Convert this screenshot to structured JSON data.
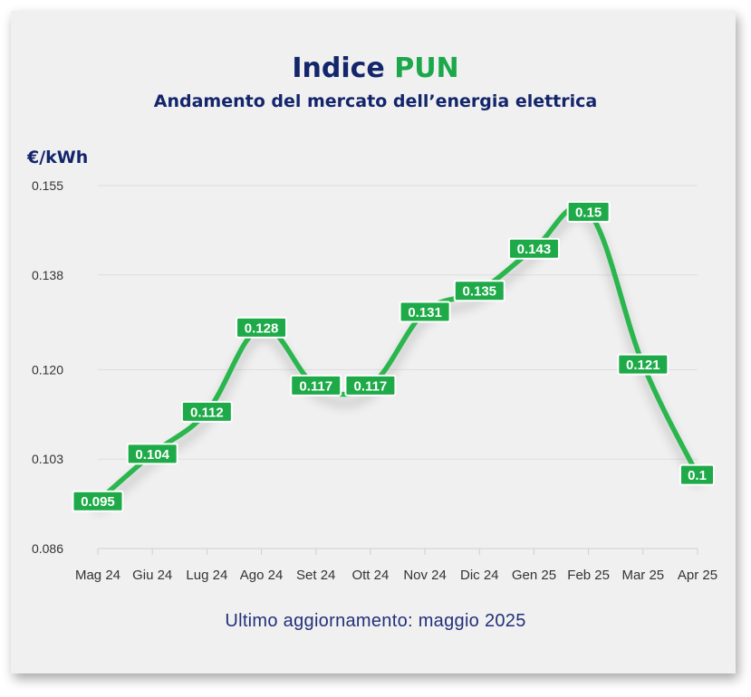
{
  "header": {
    "title_main": "Indice",
    "title_accent": "PUN",
    "subtitle": "Andamento del mercato dell’energia elettrica",
    "unit": "€/kWh"
  },
  "footer": {
    "updated": "Ultimo aggiornamento: maggio 2025"
  },
  "colors": {
    "line": "#2ab64e",
    "label_bg": "#1faa49",
    "navy": "#13256b",
    "accent": "#1aa84b"
  },
  "chart_data": {
    "type": "line",
    "title": "Indice PUN",
    "subtitle": "Andamento del mercato dell’energia elettrica",
    "ylabel": "€/kWh",
    "xlabel": "",
    "categories": [
      "Mag 24",
      "Giu 24",
      "Lug 24",
      "Ago 24",
      "Set 24",
      "Ott 24",
      "Nov 24",
      "Dic 24",
      "Gen 25",
      "Feb 25",
      "Mar 25",
      "Apr 25"
    ],
    "values": [
      0.095,
      0.104,
      0.112,
      0.128,
      0.117,
      0.117,
      0.131,
      0.135,
      0.143,
      0.15,
      0.121,
      0.1
    ],
    "value_labels": [
      "0.095",
      "0.104",
      "0.112",
      "0.128",
      "0.117",
      "0.117",
      "0.131",
      "0.135",
      "0.143",
      "0.15",
      "0.121",
      "0.1"
    ],
    "yticks": [
      "0.155",
      "0.138",
      "0.120",
      "0.103",
      "0.086"
    ],
    "ylim": [
      0.086,
      0.155
    ],
    "grid": true,
    "legend": "none"
  }
}
